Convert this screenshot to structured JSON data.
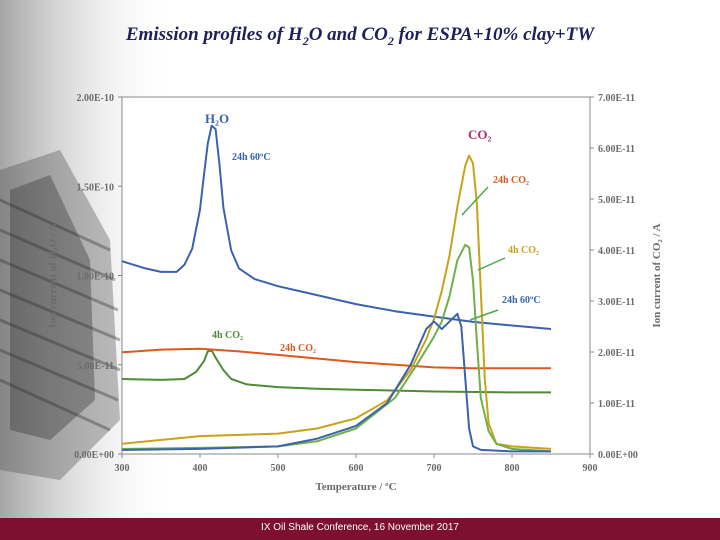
{
  "slide": {
    "title_parts": {
      "p1": "Emission profiles of H",
      "sub1": "2",
      "p2": "O and CO",
      "sub2": "2",
      "p3": " for ESPA+10% clay+TW"
    },
    "footer": "IX Oil Shale Conference, 16 November 2017"
  },
  "colors": {
    "h2o_24h": "#3a62ad",
    "h2o_4h": "#4f8a3a",
    "h2o_24h_co2": "#d95a1e",
    "co2_24h": "#c9a21a",
    "co2_4h": "#6fb04a",
    "co2_24h60": "#3a62ad",
    "footer_bg": "#7d1030"
  },
  "chart_data": {
    "type": "line",
    "title": "Emission profiles of H2O and CO2 for ESPA+10% clay+TW",
    "xlabel": "Temperature / ºC",
    "ylabel_left": "Ion current of H₂O / A",
    "ylabel_right": "Ion current of CO₂ / A",
    "xlim": [
      300,
      900
    ],
    "ylim_left": [
      0,
      2e-10
    ],
    "ylim_right": [
      0,
      7e-11
    ],
    "x_ticks": [
      "300",
      "400",
      "500",
      "600",
      "700",
      "800",
      "900"
    ],
    "y_left_ticks": [
      "0.00E+00",
      "5.00E-11",
      "1.00E-10",
      "1.50E-10",
      "2.00E-10"
    ],
    "y_right_ticks": [
      "0.00E+00",
      "1.00E-11",
      "2.00E-11",
      "3.00E-11",
      "4.00E-11",
      "5.00E-11",
      "6.00E-11",
      "7.00E-11"
    ],
    "group_labels": {
      "h2o": "H₂O",
      "co2": "CO₂"
    },
    "series": [
      {
        "id": "h2o_24h60",
        "name": "24h 60ºC",
        "axis": "left",
        "color": "#3a62ad",
        "x": [
          300,
          330,
          350,
          370,
          380,
          390,
          400,
          405,
          410,
          415,
          420,
          425,
          430,
          440,
          450,
          470,
          500,
          550,
          600,
          650,
          700,
          750,
          800,
          850
        ],
        "values": [
          1.08e-10,
          1.04e-10,
          1.02e-10,
          1.02e-10,
          1.06e-10,
          1.15e-10,
          1.37e-10,
          1.56e-10,
          1.74e-10,
          1.84e-10,
          1.82e-10,
          1.62e-10,
          1.38e-10,
          1.14e-10,
          1.04e-10,
          9.8e-11,
          9.4e-11,
          8.9e-11,
          8.4e-11,
          8e-11,
          7.7e-11,
          7.4e-11,
          7.2e-11,
          7e-11
        ]
      },
      {
        "id": "h2o_4h",
        "name": "4h CO₂",
        "axis": "left",
        "color": "#4f8a3a",
        "x": [
          300,
          350,
          380,
          395,
          405,
          410,
          415,
          420,
          430,
          440,
          460,
          500,
          550,
          600,
          700,
          800,
          850
        ],
        "values": [
          4.2e-11,
          4.15e-11,
          4.2e-11,
          4.6e-11,
          5.2e-11,
          5.75e-11,
          5.8e-11,
          5.4e-11,
          4.7e-11,
          4.2e-11,
          3.9e-11,
          3.75e-11,
          3.65e-11,
          3.6e-11,
          3.5e-11,
          3.45e-11,
          3.45e-11
        ]
      },
      {
        "id": "h2o_24hco2",
        "name": "24h CO₂",
        "axis": "left",
        "color": "#d95a1e",
        "x": [
          300,
          350,
          400,
          450,
          500,
          550,
          600,
          650,
          700,
          750,
          800,
          850
        ],
        "values": [
          5.7e-11,
          5.85e-11,
          5.9e-11,
          5.75e-11,
          5.55e-11,
          5.35e-11,
          5.15e-11,
          5e-11,
          4.85e-11,
          4.8e-11,
          4.8e-11,
          4.8e-11
        ]
      },
      {
        "id": "co2_24h",
        "name": "24h CO₂",
        "axis": "right",
        "color": "#c9a21a",
        "x": [
          300,
          400,
          500,
          550,
          600,
          640,
          670,
          690,
          700,
          710,
          720,
          730,
          740,
          745,
          750,
          755,
          760,
          765,
          770,
          780,
          800,
          850
        ],
        "values": [
          2e-12,
          3.5e-12,
          4e-12,
          5e-12,
          7e-12,
          1.05e-11,
          1.65e-11,
          2.25e-11,
          2.65e-11,
          3.2e-11,
          3.9e-11,
          4.85e-11,
          5.65e-11,
          5.85e-11,
          5.7e-11,
          4.9e-11,
          3.2e-11,
          1.5e-11,
          6e-12,
          2e-12,
          1.5e-12,
          1e-12
        ]
      },
      {
        "id": "co2_4h",
        "name": "4h CO₂",
        "axis": "right",
        "color": "#6fb04a",
        "x": [
          300,
          400,
          500,
          550,
          600,
          650,
          680,
          700,
          710,
          720,
          730,
          740,
          745,
          750,
          755,
          760,
          770,
          780,
          800,
          850
        ],
        "values": [
          1e-12,
          1.2e-12,
          1.5e-12,
          2.5e-12,
          5e-12,
          1.1e-11,
          1.8e-11,
          2.3e-11,
          2.6e-11,
          3.1e-11,
          3.8e-11,
          4.1e-11,
          4.05e-11,
          3.4e-11,
          2.2e-11,
          1.1e-11,
          4.5e-12,
          2e-12,
          1e-12,
          5e-13
        ]
      },
      {
        "id": "co2_24h60",
        "name": "24h 60ºC",
        "axis": "right",
        "color": "#3a62ad",
        "x": [
          300,
          400,
          500,
          550,
          600,
          640,
          670,
          690,
          700,
          710,
          720,
          730,
          735,
          740,
          745,
          750,
          760,
          800,
          850
        ],
        "values": [
          8e-13,
          1e-12,
          1.5e-12,
          3e-12,
          5.5e-12,
          1e-11,
          1.75e-11,
          2.45e-11,
          2.6e-11,
          2.45e-11,
          2.6e-11,
          2.75e-11,
          2.5e-11,
          1.5e-11,
          5e-12,
          1.5e-12,
          8e-13,
          5e-13,
          5e-13
        ]
      }
    ],
    "annotations": [
      {
        "text": "24h 60ºC",
        "series": "h2o_24h60"
      },
      {
        "text": "4h CO₂",
        "series": "h2o_4h"
      },
      {
        "text": "24h CO₂",
        "series": "h2o_24hco2"
      },
      {
        "text": "24h CO₂",
        "series": "co2_24h"
      },
      {
        "text": "4h CO₂",
        "series": "co2_4h"
      },
      {
        "text": "24h 60ºC",
        "series": "co2_24h60"
      }
    ]
  }
}
